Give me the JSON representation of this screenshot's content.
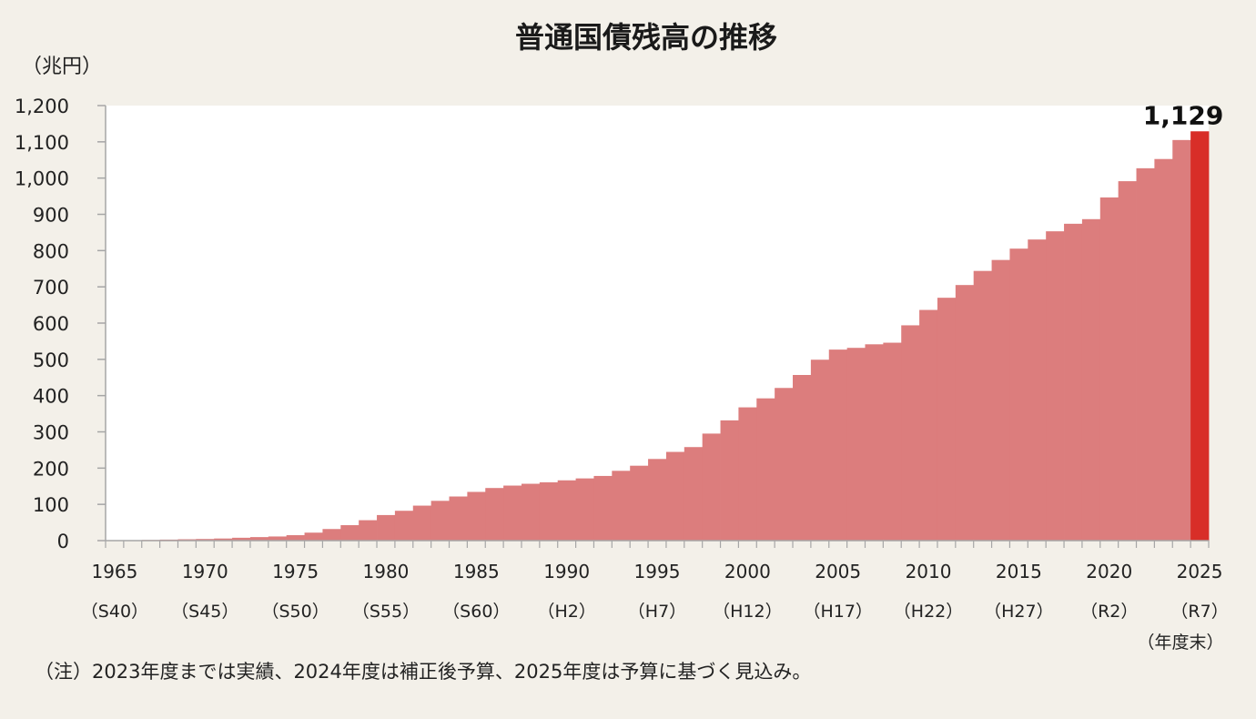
{
  "chart_data": {
    "type": "bar",
    "title": "普通国債残高の推移",
    "ylabel": "（兆円）",
    "ylim": [
      0,
      1200
    ],
    "yticks": [
      "0",
      "100",
      "200",
      "300",
      "400",
      "500",
      "600",
      "700",
      "800",
      "900",
      "1,000",
      "1,100",
      "1,200"
    ],
    "xtick_years": [
      "1965",
      "1970",
      "1975",
      "1980",
      "1985",
      "1990",
      "1995",
      "2000",
      "2005",
      "2010",
      "2015",
      "2020",
      "2025"
    ],
    "era_labels": [
      "（S40）",
      "（S45）",
      "（S50）",
      "（S55）",
      "（S60）",
      "（H2）",
      "（H7）",
      "（H12）",
      "（H17）",
      "（H22）",
      "（H27）",
      "（R2）",
      "（R7）"
    ],
    "x_unit_label": "（年度末）",
    "x": [
      1965,
      1966,
      1967,
      1968,
      1969,
      1970,
      1971,
      1972,
      1973,
      1974,
      1975,
      1976,
      1977,
      1978,
      1979,
      1980,
      1981,
      1982,
      1983,
      1984,
      1985,
      1986,
      1987,
      1988,
      1989,
      1990,
      1991,
      1992,
      1993,
      1994,
      1995,
      1996,
      1997,
      1998,
      1999,
      2000,
      2001,
      2002,
      2003,
      2004,
      2005,
      2006,
      2007,
      2008,
      2009,
      2010,
      2011,
      2012,
      2013,
      2014,
      2015,
      2016,
      2017,
      2018,
      2019,
      2020,
      2021,
      2022,
      2023,
      2024,
      2025
    ],
    "values": [
      0.2,
      0.9,
      1.9,
      2.8,
      3.7,
      4.5,
      5.8,
      7.9,
      9.7,
      11.4,
      15.0,
      22.0,
      32.0,
      42.6,
      56.3,
      70.5,
      82.3,
      96.5,
      109.7,
      121.7,
      134.4,
      145.1,
      151.8,
      156.8,
      160.9,
      166.3,
      171.6,
      178.4,
      192.5,
      206.6,
      225.2,
      244.7,
      258.0,
      295.2,
      331.7,
      367.6,
      392.4,
      421.1,
      456.9,
      499.0,
      526.9,
      531.7,
      541.5,
      545.9,
      593.9,
      636.3,
      669.9,
      705.0,
      743.9,
      774.1,
      805.4,
      830.6,
      853.2,
      874.0,
      886.7,
      946.6,
      991.4,
      1027.1,
      1052.6,
      1105.0,
      1129.0
    ],
    "highlight_label": "1,129",
    "colors": {
      "bar": "#dc7d7d",
      "highlight": "#d82e28",
      "axis": "#a6a6a6",
      "plot_bg": "#ffffff",
      "page_bg": "#f3f0e9"
    }
  },
  "footnote": "（注）2023年度までは実績、2024年度は補正後予算、2025年度は予算に基づく見込み。"
}
